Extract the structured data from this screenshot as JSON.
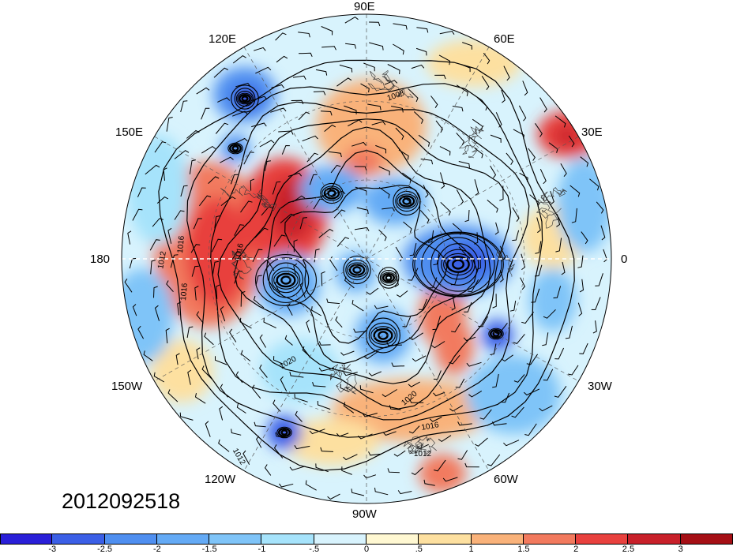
{
  "figure": {
    "date_stamp": "2012092518",
    "lon_labels": [
      {
        "text": "90E",
        "pos": "top"
      },
      {
        "text": "60E",
        "pos": "upper-right"
      },
      {
        "text": "30E",
        "pos": "right-upper"
      },
      {
        "text": "0",
        "pos": "right"
      },
      {
        "text": "30W",
        "pos": "right-lower"
      },
      {
        "text": "60W",
        "pos": "lower-right"
      },
      {
        "text": "90W",
        "pos": "bottom"
      },
      {
        "text": "120W",
        "pos": "lower-left"
      },
      {
        "text": "150W",
        "pos": "left-lower"
      },
      {
        "text": "180",
        "pos": "left"
      },
      {
        "text": "150E",
        "pos": "left-upper"
      },
      {
        "text": "120E",
        "pos": "upper-left"
      }
    ],
    "contour_labels": [
      "1008",
      "1012",
      "1016",
      "1020"
    ],
    "colors": {
      "dark_blue": "#1a1ad8",
      "neutral": "#ffffff",
      "dark_red": "#a50f15",
      "contour": "#000000"
    }
  },
  "chart_data": {
    "type": "heatmap",
    "projection": "north polar stereographic",
    "field_shaded": "anomaly (unitless, colorbar scale)",
    "field_contoured": "sea level pressure (hPa)",
    "contour_values": [
      1008,
      1012,
      1016,
      1020
    ],
    "vectors": "wind barbs",
    "colorbar": {
      "ticks": [
        "-3",
        "-2.5",
        "-2",
        "-1.5",
        "-1",
        "-.5",
        "0",
        ".5",
        "1",
        "1.5",
        "2",
        "2.5",
        "3"
      ],
      "range": [
        -3.5,
        3.5
      ],
      "colors": [
        "#2a1fd8",
        "#3b5fe6",
        "#4f8ff0",
        "#64aaf5",
        "#7fc4f8",
        "#a6e3fb",
        "#d8f3fd",
        "#fff8d2",
        "#fde0a0",
        "#f9b27a",
        "#f27a5e",
        "#e8413e",
        "#c8202a",
        "#a50f15"
      ]
    },
    "features": [
      {
        "kind": "low",
        "lon_label": "0",
        "approx": "strong negative anomaly near 0 longitude"
      },
      {
        "kind": "low",
        "lon_label": "120E",
        "approx": "intense closed low"
      },
      {
        "kind": "high",
        "lon_label": "180",
        "approx": "positive anomaly"
      },
      {
        "kind": "high",
        "lon_label": "30E",
        "approx": "positive anomaly"
      }
    ]
  }
}
